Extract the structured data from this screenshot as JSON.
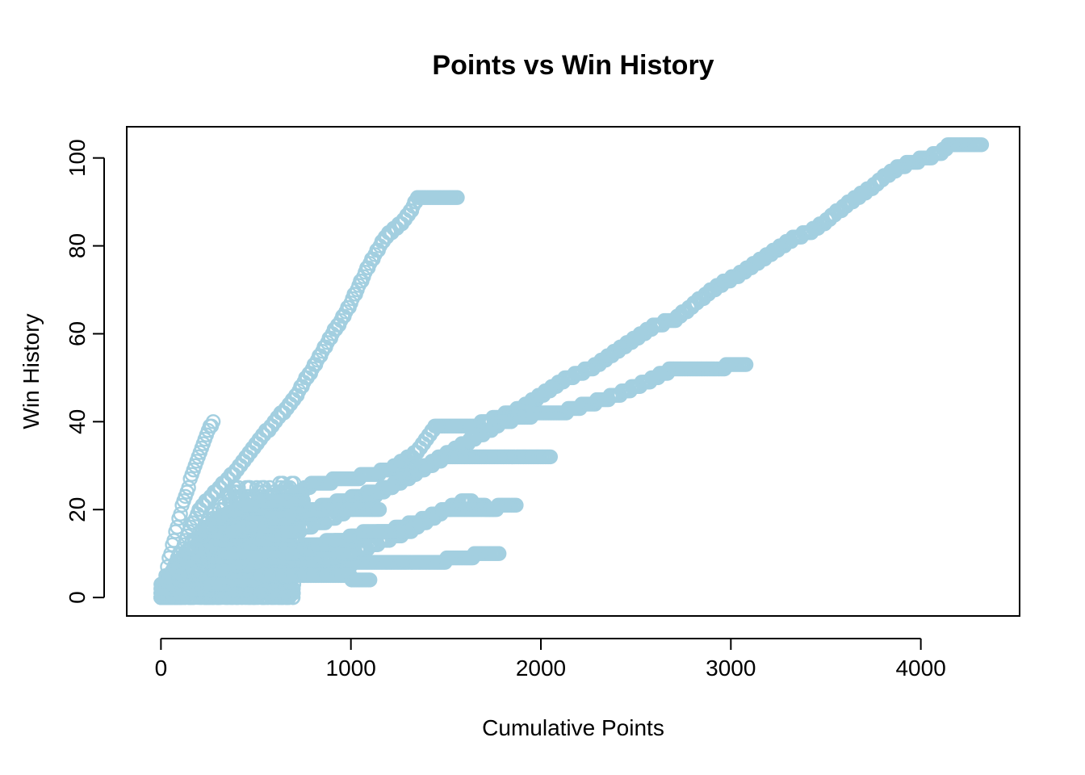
{
  "chart_data": {
    "type": "scatter",
    "title": "Points vs Win History",
    "xlabel": "Cumulative Points",
    "ylabel": "Win History",
    "xlim": [
      -180,
      4520
    ],
    "ylim": [
      -4.2,
      107.1
    ],
    "xticks": [
      0,
      1000,
      2000,
      3000,
      4000
    ],
    "xtick_labels": [
      "0",
      "1000",
      "2000",
      "3000",
      "4000"
    ],
    "yticks": [
      0,
      20,
      40,
      60,
      80,
      100
    ],
    "ytick_labels": [
      "0",
      "20",
      "40",
      "60",
      "80",
      "100"
    ],
    "marker": "open-circle",
    "point_color": "#a3cfe0",
    "grid": false,
    "legend": "none",
    "series": [
      {
        "trajectory": [
          [
            0,
            0
          ],
          [
            60,
            12
          ],
          [
            120,
            22
          ],
          [
            180,
            30
          ],
          [
            240,
            37
          ],
          [
            275,
            40
          ]
        ]
      },
      {
        "trajectory": [
          [
            0,
            0
          ],
          [
            200,
            20
          ],
          [
            420,
            30
          ],
          [
            560,
            38
          ],
          [
            700,
            45
          ],
          [
            850,
            56
          ],
          [
            1000,
            67
          ],
          [
            1100,
            76
          ],
          [
            1180,
            82
          ],
          [
            1260,
            85
          ],
          [
            1320,
            88
          ],
          [
            1350,
            91
          ],
          [
            1560,
            91
          ]
        ]
      },
      {
        "trajectory": [
          [
            0,
            0
          ],
          [
            300,
            12
          ],
          [
            600,
            20
          ],
          [
            800,
            26
          ],
          [
            1000,
            27
          ],
          [
            1200,
            29
          ],
          [
            1350,
            33
          ],
          [
            1450,
            39
          ],
          [
            1650,
            39
          ],
          [
            1900,
            43
          ],
          [
            2100,
            49
          ],
          [
            2300,
            53
          ],
          [
            2400,
            56
          ],
          [
            2600,
            62
          ],
          [
            2700,
            63
          ],
          [
            2900,
            70
          ],
          [
            3100,
            75
          ],
          [
            3300,
            81
          ],
          [
            3450,
            84
          ],
          [
            3600,
            89
          ],
          [
            3700,
            92
          ],
          [
            3850,
            97
          ],
          [
            3950,
            99
          ],
          [
            4100,
            101
          ],
          [
            4150,
            103
          ],
          [
            4320,
            103
          ]
        ]
      },
      {
        "trajectory": [
          [
            0,
            0
          ],
          [
            400,
            10
          ],
          [
            800,
            20
          ],
          [
            1200,
            25
          ],
          [
            1400,
            30
          ],
          [
            1600,
            35
          ],
          [
            1800,
            40
          ],
          [
            2000,
            42
          ],
          [
            2100,
            42
          ],
          [
            2250,
            44
          ],
          [
            2400,
            46
          ],
          [
            2600,
            50
          ],
          [
            2700,
            52
          ],
          [
            2950,
            52
          ],
          [
            3000,
            53
          ],
          [
            3080,
            53
          ]
        ]
      },
      {
        "trajectory": [
          [
            0,
            0
          ],
          [
            500,
            12
          ],
          [
            900,
            18
          ],
          [
            1200,
            25
          ],
          [
            1500,
            32
          ],
          [
            2050,
            32
          ]
        ]
      },
      {
        "trajectory": [
          [
            0,
            0
          ],
          [
            400,
            8
          ],
          [
            800,
            12
          ],
          [
            1200,
            15
          ],
          [
            1400,
            18
          ],
          [
            1600,
            22
          ],
          [
            1750,
            20
          ],
          [
            1800,
            21
          ],
          [
            1870,
            21
          ]
        ]
      },
      {
        "trajectory": [
          [
            0,
            0
          ],
          [
            300,
            4
          ],
          [
            800,
            7
          ],
          [
            1200,
            8
          ],
          [
            1400,
            8
          ],
          [
            1600,
            9
          ],
          [
            1700,
            10
          ],
          [
            1780,
            10
          ]
        ]
      },
      {
        "trajectory": [
          [
            0,
            0
          ],
          [
            500,
            5
          ],
          [
            1000,
            10
          ],
          [
            1300,
            15
          ],
          [
            1500,
            20
          ],
          [
            1750,
            20
          ]
        ]
      },
      {
        "trajectory": [
          [
            0,
            0
          ],
          [
            350,
            6
          ],
          [
            700,
            10
          ],
          [
            950,
            13
          ],
          [
            1100,
            15
          ],
          [
            1250,
            15
          ]
        ]
      },
      {
        "trajectory": [
          [
            0,
            0
          ],
          [
            300,
            3
          ],
          [
            600,
            5
          ],
          [
            900,
            5
          ],
          [
            1100,
            4
          ]
        ]
      },
      {
        "trajectory": [
          [
            0,
            0
          ],
          [
            250,
            16
          ],
          [
            400,
            20
          ],
          [
            550,
            22
          ],
          [
            750,
            22
          ]
        ]
      },
      {
        "trajectory": [
          [
            0,
            0
          ],
          [
            200,
            8
          ],
          [
            350,
            14
          ],
          [
            500,
            17
          ],
          [
            650,
            18
          ],
          [
            850,
            20
          ],
          [
            1150,
            20
          ]
        ]
      }
    ],
    "cluster": {
      "x_range": [
        0,
        700
      ],
      "y_range": [
        0,
        26
      ],
      "count": 1400
    }
  }
}
